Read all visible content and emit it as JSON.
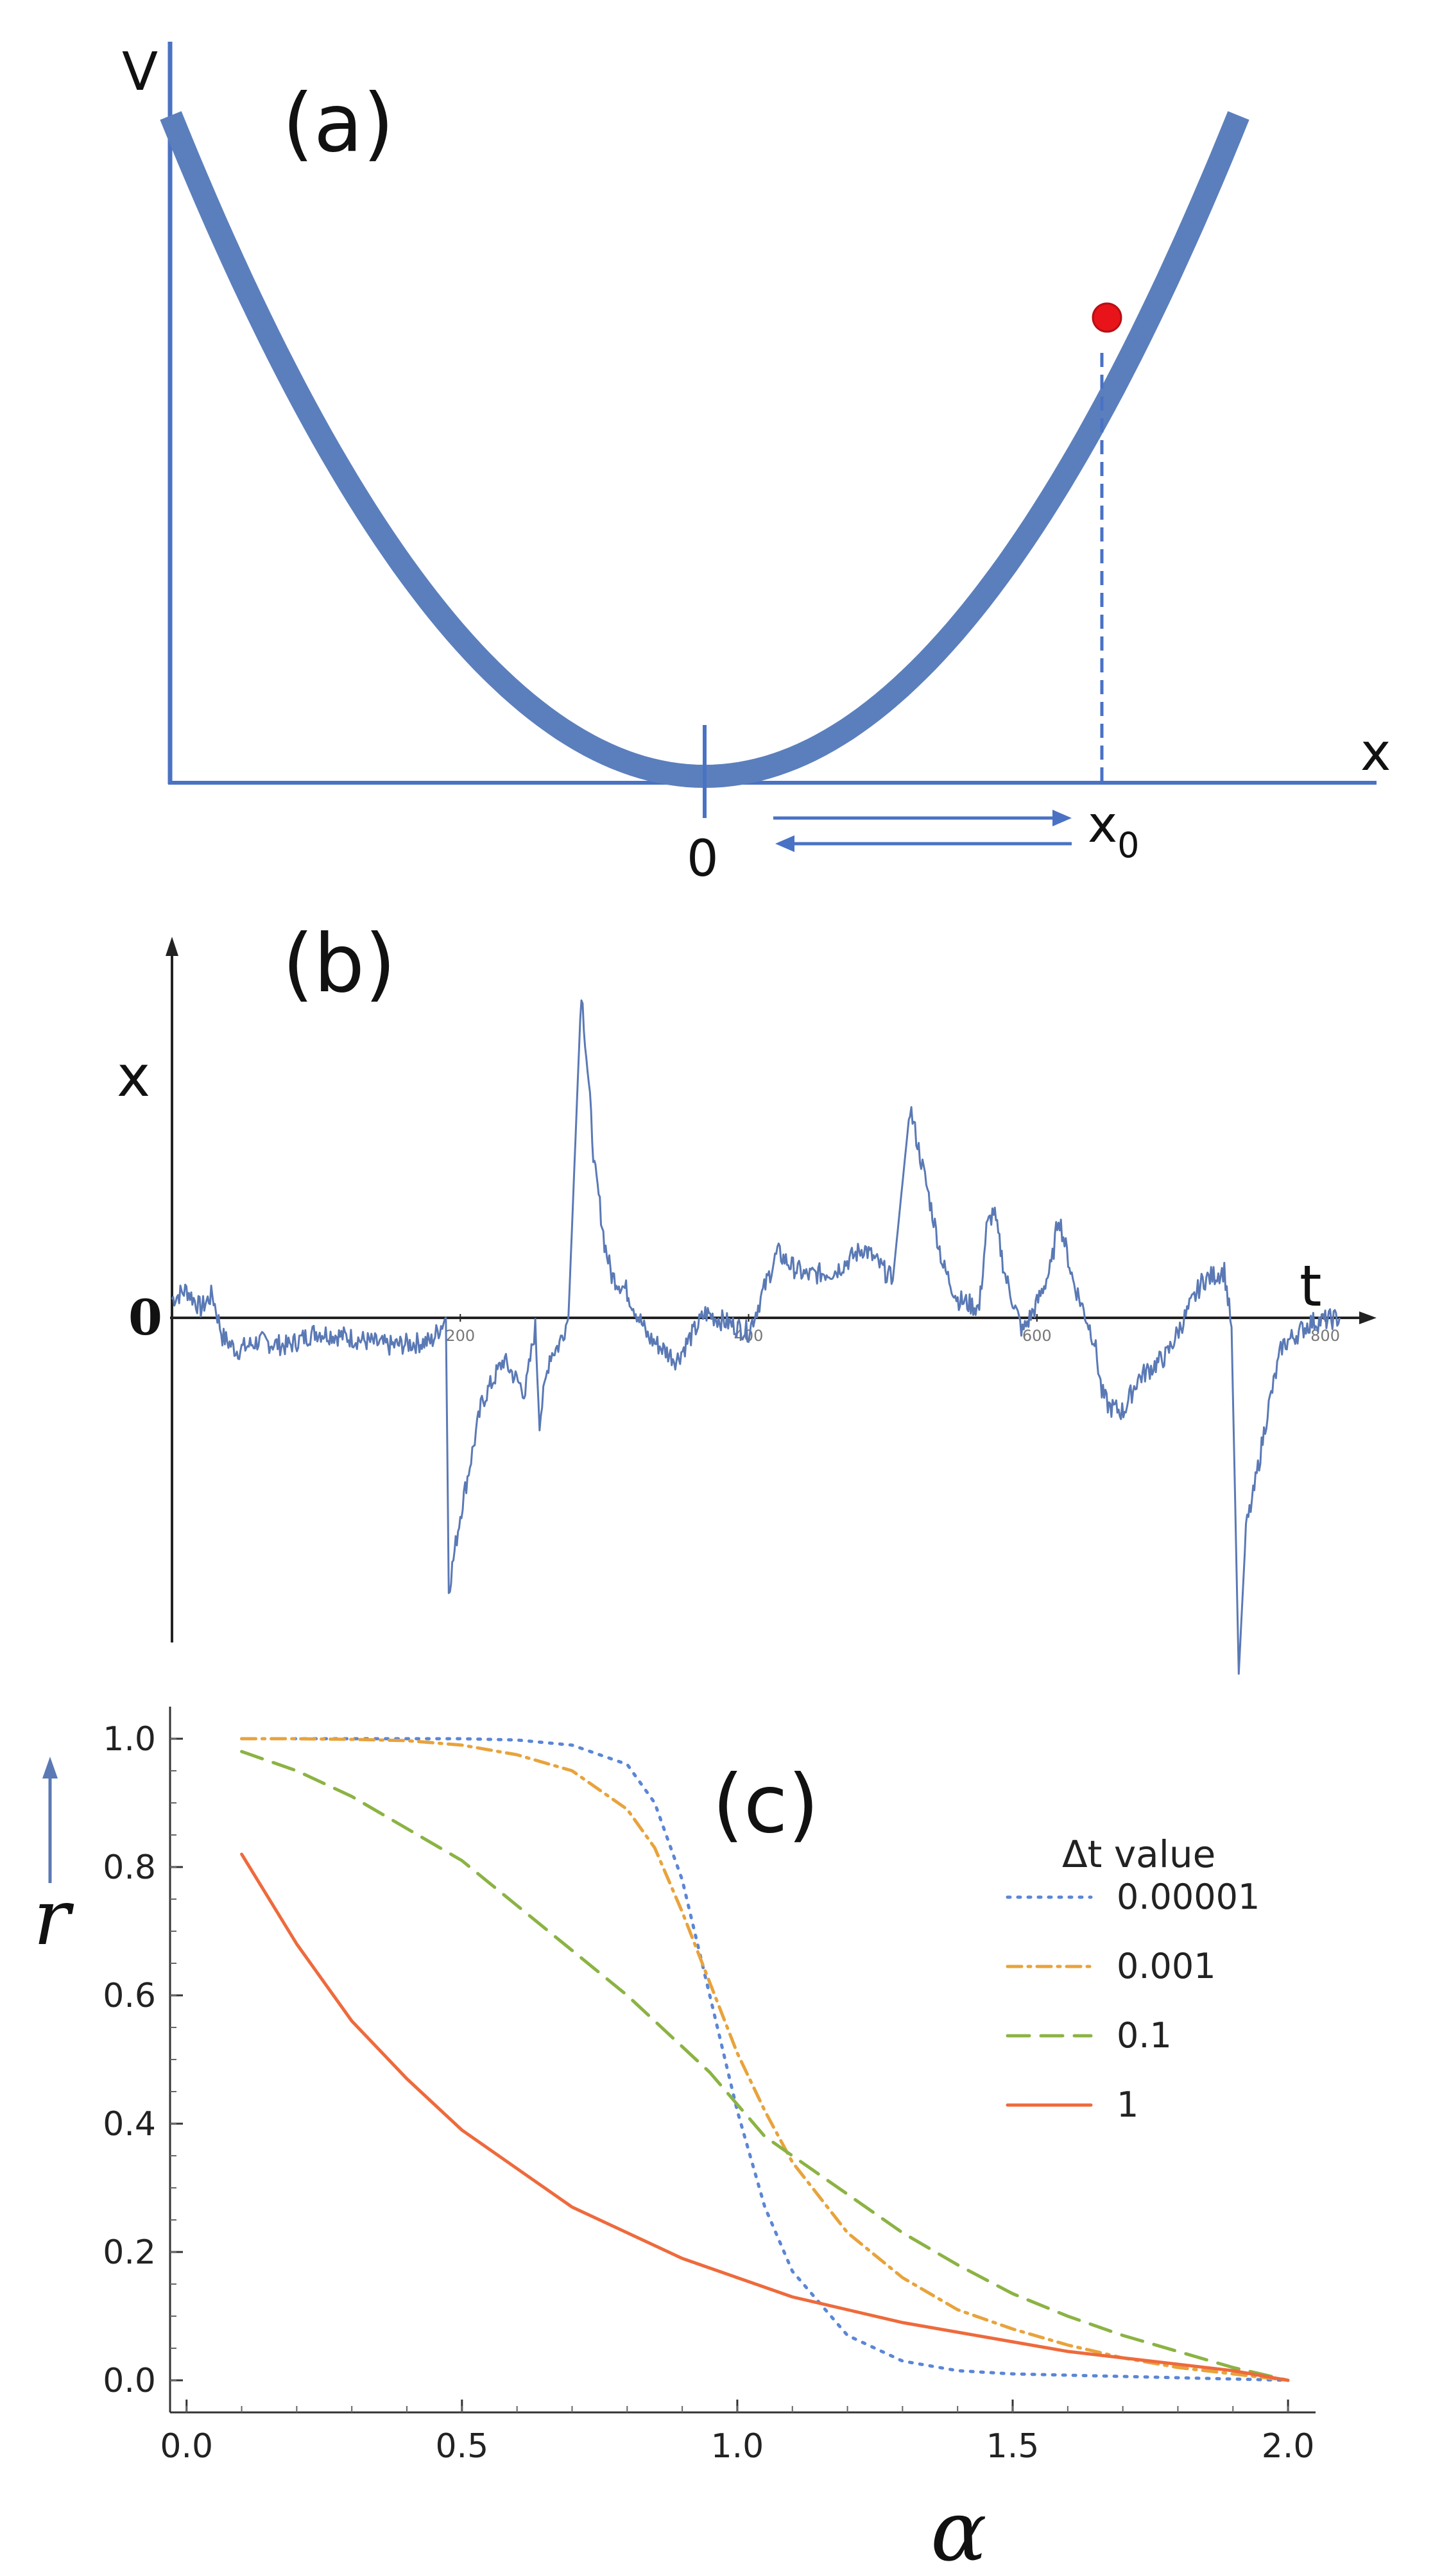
{
  "panel_a": {
    "label": "(a)",
    "y_axis_label": "V",
    "x_axis_label": "x",
    "origin_label": "0",
    "x0_label": "x",
    "x0_subscript": "0",
    "colors": {
      "curve": "#5b7fbd",
      "axis": "#4a72c4",
      "point": "#e8141a"
    },
    "chart_data": {
      "type": "line",
      "description_key": "potential",
      "x": [
        -1.0,
        -0.8,
        -0.6,
        -0.4,
        -0.2,
        0.0,
        0.2,
        0.4,
        0.6,
        0.8,
        1.0
      ],
      "y": [
        1.0,
        0.64,
        0.36,
        0.16,
        0.04,
        0.0,
        0.04,
        0.16,
        0.36,
        0.64,
        1.0
      ],
      "marked_point": {
        "x": 0.76,
        "y": 0.72
      }
    }
  },
  "panel_b": {
    "label": "(b)",
    "y_axis_label": "x",
    "x_axis_label": "t",
    "zero_label": "0",
    "colors": {
      "trace": "#5a79b5",
      "axis": "#222222"
    },
    "chart_data": {
      "type": "line",
      "x_ticks": [
        "200",
        "400",
        "600",
        "800"
      ],
      "xlim": [
        0,
        820
      ],
      "t": [
        0,
        10,
        20,
        28,
        35,
        45,
        60,
        80,
        100,
        120,
        150,
        180,
        190,
        192,
        200,
        215,
        230,
        245,
        252,
        255,
        262,
        268,
        275,
        284,
        290,
        293,
        296,
        300,
        305,
        315,
        330,
        350,
        370,
        400,
        420,
        430,
        440,
        460,
        480,
        500,
        512,
        518,
        525,
        535,
        545,
        560,
        565,
        570,
        578,
        585,
        590,
        600,
        610,
        615,
        625,
        640,
        645,
        650,
        660,
        670,
        690,
        715,
        730,
        735,
        740,
        745,
        750,
        760,
        770,
        790,
        810
      ],
      "x": [
        0.4,
        0.6,
        0.2,
        0.5,
        -0.4,
        -0.7,
        -0.5,
        -0.6,
        -0.3,
        -0.4,
        -0.6,
        -0.5,
        0.0,
        -5.8,
        -4.2,
        -1.8,
        -0.9,
        -1.6,
        -0.2,
        -2.2,
        -0.8,
        -0.6,
        0.0,
        7.0,
        4.6,
        3.2,
        2.6,
        1.6,
        0.9,
        0.6,
        -0.4,
        -0.9,
        0.1,
        -0.3,
        1.4,
        1.1,
        0.9,
        1.0,
        1.5,
        0.8,
        4.5,
        3.6,
        2.6,
        1.1,
        0.4,
        0.2,
        1.9,
        2.3,
        0.9,
        0.2,
        -0.3,
        0.3,
        1.1,
        2.2,
        0.8,
        -0.5,
        -1.6,
        -1.9,
        -2.0,
        -1.3,
        -0.8,
        0.8,
        1.0,
        -0.2,
        -7.6,
        -4.5,
        -3.8,
        -2.0,
        -0.6,
        -0.1,
        0.0
      ]
    }
  },
  "panel_c": {
    "label": "(c)",
    "y_axis_label": "r",
    "x_axis_label": "α",
    "legend_title": "Δt value",
    "colors": {
      "s1": "#5b86d6",
      "s2": "#e8a33c",
      "s3": "#8bb343",
      "s4": "#ee6a3c",
      "axis": "#333333"
    },
    "chart_data": {
      "type": "line",
      "xlim": [
        -0.03,
        2.05
      ],
      "ylim": [
        -0.05,
        1.05
      ],
      "x_ticks": [
        "0.0",
        "0.5",
        "1.0",
        "1.5",
        "2.0"
      ],
      "y_ticks": [
        "0.0",
        "0.2",
        "0.4",
        "0.6",
        "0.8",
        "1.0"
      ],
      "x": [
        0.1,
        0.2,
        0.3,
        0.4,
        0.5,
        0.6,
        0.7,
        0.8,
        0.85,
        0.9,
        0.95,
        1.0,
        1.05,
        1.1,
        1.2,
        1.3,
        1.4,
        1.5,
        1.6,
        1.7,
        1.8,
        1.9,
        2.0
      ],
      "series": [
        {
          "name": "0.00001",
          "dash": "dotted",
          "values": [
            1.0,
            1.0,
            1.0,
            1.0,
            1.0,
            0.998,
            0.99,
            0.96,
            0.9,
            0.78,
            0.6,
            0.42,
            0.27,
            0.17,
            0.07,
            0.03,
            0.015,
            0.01,
            0.008,
            0.006,
            0.004,
            0.002,
            0.0
          ]
        },
        {
          "name": "0.001",
          "dash": "dash-dot",
          "values": [
            1.0,
            1.0,
            0.999,
            0.997,
            0.99,
            0.975,
            0.95,
            0.89,
            0.83,
            0.73,
            0.62,
            0.51,
            0.42,
            0.34,
            0.23,
            0.16,
            0.11,
            0.08,
            0.055,
            0.035,
            0.02,
            0.01,
            0.0
          ]
        },
        {
          "name": "0.1",
          "dash": "dashed",
          "values": [
            0.98,
            0.95,
            0.91,
            0.86,
            0.81,
            0.74,
            0.67,
            0.6,
            0.56,
            0.52,
            0.48,
            0.43,
            0.38,
            0.35,
            0.29,
            0.23,
            0.18,
            0.135,
            0.1,
            0.07,
            0.045,
            0.02,
            0.0
          ]
        },
        {
          "name": "1",
          "dash": "solid",
          "values": [
            0.82,
            0.68,
            0.56,
            0.47,
            0.39,
            0.33,
            0.27,
            0.23,
            0.21,
            0.19,
            0.175,
            0.16,
            0.145,
            0.13,
            0.11,
            0.09,
            0.075,
            0.06,
            0.045,
            0.035,
            0.025,
            0.015,
            0.0
          ]
        }
      ]
    }
  }
}
